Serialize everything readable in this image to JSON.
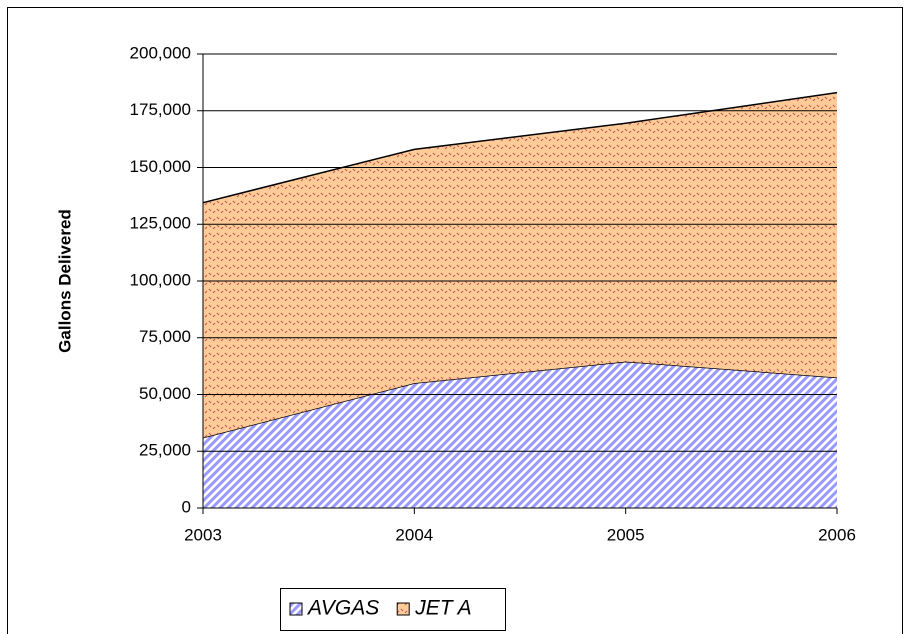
{
  "chart_data": {
    "type": "area",
    "stacked": true,
    "y_label": "Gallons Delivered",
    "categories": [
      "2003",
      "2004",
      "2005",
      "2006"
    ],
    "series": [
      {
        "name": "AVGAS",
        "color": "#9999ff",
        "values": [
          31000,
          55000,
          64500,
          57500
        ]
      },
      {
        "name": "JET A",
        "color": "#ffcc99",
        "values": [
          103500,
          103000,
          105000,
          125500
        ]
      }
    ],
    "ylim": [
      0,
      200000
    ],
    "yticks": [
      0,
      {
        "value": 25000,
        "label": "25,000"
      },
      {
        "value": 50000,
        "label": "50,000"
      },
      {
        "value": 75000,
        "label": "75,000"
      },
      {
        "value": 100000,
        "label": "100,000"
      },
      {
        "value": 125000,
        "label": "125,000"
      },
      {
        "value": 150000,
        "label": "150,000"
      },
      {
        "value": 175000,
        "label": "175,000"
      },
      {
        "value": 200000,
        "label": "200,000"
      }
    ],
    "grid": true,
    "legend": "bottom"
  }
}
